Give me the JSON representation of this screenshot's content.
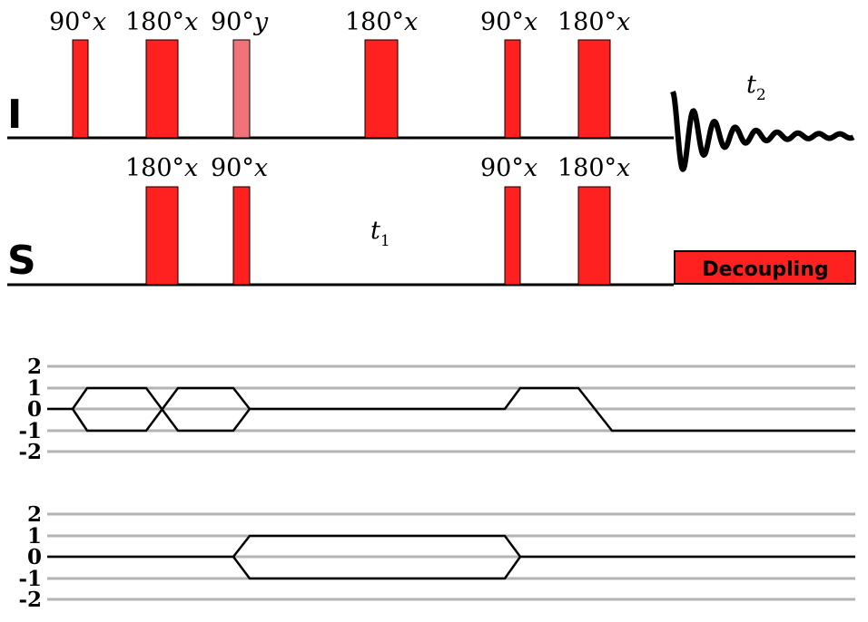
{
  "colors": {
    "pulse": "#ff2020",
    "pulse_light": "#f2727a",
    "line": "#000000",
    "grid": "#b3b3b3"
  },
  "channels": {
    "I": "I",
    "S": "S"
  },
  "pulse_labels": {
    "i_1": {
      "angle": "90°",
      "axis": "x"
    },
    "i_2": {
      "angle": "180°",
      "axis": "x"
    },
    "i_3": {
      "angle": "90°",
      "axis": "y"
    },
    "i_4": {
      "angle": "180°",
      "axis": "x"
    },
    "i_5": {
      "angle": "90°",
      "axis": "x"
    },
    "i_6": {
      "angle": "180°",
      "axis": "x"
    },
    "s_1": {
      "angle": "180°",
      "axis": "x"
    },
    "s_2": {
      "angle": "90°",
      "axis": "x"
    },
    "s_3": {
      "angle": "90°",
      "axis": "x"
    },
    "s_4": {
      "angle": "180°",
      "axis": "x"
    }
  },
  "times": {
    "t1": {
      "symbol": "t",
      "subscript": "1"
    },
    "t2": {
      "symbol": "t",
      "subscript": "2"
    }
  },
  "decoupling": "Decoupling",
  "coherence_ticks": [
    "2",
    "1",
    "0",
    "-1",
    "-2"
  ]
}
